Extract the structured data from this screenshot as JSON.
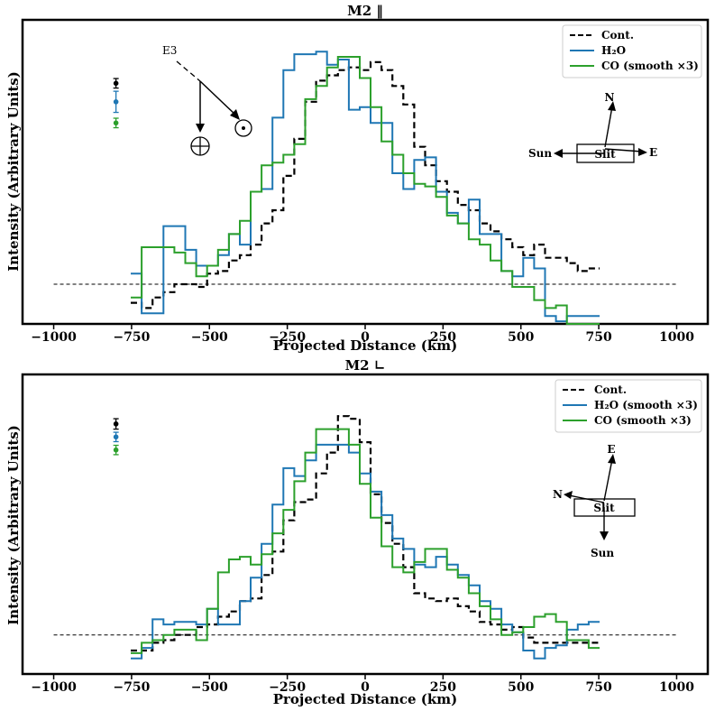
{
  "chart_data": [
    {
      "type": "line",
      "title": "M2 ‖",
      "xlabel": "Projected Distance (km)",
      "ylabel": "Intensity (Arbitrary Units)",
      "xlim": [
        -1100,
        1100
      ],
      "ylim": [
        -0.15,
        1.0
      ],
      "xticks": [
        -1000,
        -750,
        -500,
        -250,
        0,
        250,
        500,
        750,
        1000
      ],
      "baseline": 0,
      "legend": "top-right",
      "step_width": 35,
      "x": [
        -735,
        -700,
        -665,
        -630,
        -595,
        -560,
        -525,
        -490,
        -455,
        -420,
        -385,
        -350,
        -315,
        -280,
        -245,
        -210,
        -175,
        -140,
        -105,
        -70,
        -35,
        0,
        35,
        70,
        105,
        140,
        175,
        210,
        245,
        280,
        315,
        350,
        385,
        420,
        455,
        490,
        525,
        560,
        595,
        630,
        665,
        700,
        735
      ],
      "series": [
        {
          "name": "Cont.",
          "color": "#000000",
          "dash": "dashed",
          "values": [
            -0.07,
            -0.09,
            -0.05,
            -0.03,
            0.0,
            0.0,
            -0.01,
            0.04,
            0.05,
            0.09,
            0.11,
            0.15,
            0.23,
            0.28,
            0.41,
            0.55,
            0.69,
            0.77,
            0.79,
            0.81,
            0.82,
            0.81,
            0.84,
            0.81,
            0.75,
            0.68,
            0.52,
            0.45,
            0.39,
            0.35,
            0.3,
            0.28,
            0.23,
            0.2,
            0.17,
            0.14,
            0.11,
            0.15,
            0.1,
            0.1,
            0.08,
            0.05,
            0.06
          ]
        },
        {
          "name": "H₂O",
          "color": "#1f77b4",
          "dash": "solid",
          "values": [
            0.04,
            -0.11,
            -0.11,
            0.22,
            0.22,
            0.13,
            0.07,
            0.07,
            0.11,
            0.19,
            0.15,
            0.35,
            0.36,
            0.63,
            0.81,
            0.87,
            0.87,
            0.88,
            0.83,
            0.85,
            0.66,
            0.67,
            0.61,
            0.61,
            0.42,
            0.36,
            0.47,
            0.48,
            0.35,
            0.27,
            0.23,
            0.32,
            0.19,
            0.19,
            0.05,
            0.03,
            0.1,
            0.06,
            -0.12,
            -0.14,
            -0.12,
            -0.12,
            -0.12
          ]
        },
        {
          "name": "CO (smooth ×3)",
          "color": "#2ca02c",
          "dash": "solid",
          "values": [
            -0.05,
            0.14,
            0.14,
            0.14,
            0.12,
            0.08,
            0.03,
            0.07,
            0.13,
            0.19,
            0.24,
            0.35,
            0.45,
            0.46,
            0.49,
            0.53,
            0.7,
            0.75,
            0.82,
            0.86,
            0.86,
            0.78,
            0.67,
            0.54,
            0.49,
            0.42,
            0.38,
            0.37,
            0.33,
            0.26,
            0.23,
            0.17,
            0.15,
            0.09,
            0.05,
            -0.01,
            -0.01,
            -0.06,
            -0.09,
            -0.08,
            -0.15,
            -0.15,
            -0.15
          ]
        }
      ],
      "errorbars": [
        {
          "series": "Cont.",
          "color": "#000000",
          "x": -800,
          "y": 0.76,
          "err": 0.018
        },
        {
          "series": "H₂O",
          "color": "#1f77b4",
          "x": -800,
          "y": 0.69,
          "err": 0.04
        },
        {
          "series": "CO (smooth ×3)",
          "color": "#2ca02c",
          "x": -800,
          "y": 0.61,
          "err": 0.018
        }
      ],
      "compass": {
        "north": "N",
        "east": "E",
        "sun": "Sun",
        "slit": "Slit"
      },
      "annotation": {
        "label": "E3",
        "earth_symbol": "⊕",
        "sun_symbol": "⊙"
      }
    },
    {
      "type": "line",
      "title": "M2 ∟",
      "xlabel": "Projected Distance (km)",
      "ylabel": "Intensity (Arbitrary Units)",
      "xlim": [
        -1100,
        1100
      ],
      "ylim": [
        -0.15,
        1.0
      ],
      "xticks": [
        -1000,
        -750,
        -500,
        -250,
        0,
        250,
        500,
        750,
        1000
      ],
      "baseline": 0,
      "legend": "top-right",
      "step_width": 35,
      "x": [
        -735,
        -700,
        -665,
        -630,
        -595,
        -560,
        -525,
        -490,
        -455,
        -420,
        -385,
        -350,
        -315,
        -280,
        -245,
        -210,
        -175,
        -140,
        -105,
        -70,
        -35,
        0,
        35,
        70,
        105,
        140,
        175,
        210,
        245,
        280,
        315,
        350,
        385,
        420,
        455,
        490,
        525,
        560,
        595,
        630,
        665,
        700,
        735
      ],
      "series": [
        {
          "name": "Cont.",
          "color": "#000000",
          "dash": "dashed",
          "values": [
            -0.06,
            -0.06,
            -0.03,
            -0.02,
            0.0,
            0.0,
            0.03,
            0.04,
            0.07,
            0.09,
            0.13,
            0.14,
            0.23,
            0.32,
            0.44,
            0.51,
            0.52,
            0.62,
            0.7,
            0.84,
            0.83,
            0.74,
            0.54,
            0.43,
            0.35,
            0.26,
            0.16,
            0.14,
            0.13,
            0.14,
            0.11,
            0.09,
            0.05,
            0.04,
            0.02,
            0.03,
            -0.01,
            -0.03,
            -0.03,
            -0.03,
            -0.03,
            -0.03,
            -0.03
          ]
        },
        {
          "name": "H₂O (smooth ×3)",
          "color": "#1f77b4",
          "dash": "solid",
          "values": [
            -0.09,
            -0.05,
            0.06,
            0.04,
            0.05,
            0.05,
            0.04,
            0.1,
            0.04,
            0.04,
            0.13,
            0.22,
            0.35,
            0.5,
            0.64,
            0.61,
            0.67,
            0.73,
            0.73,
            0.73,
            0.7,
            0.62,
            0.55,
            0.46,
            0.37,
            0.33,
            0.27,
            0.26,
            0.3,
            0.27,
            0.23,
            0.19,
            0.13,
            0.1,
            0.04,
            0.01,
            -0.06,
            -0.09,
            -0.05,
            -0.04,
            0.02,
            0.04,
            0.05
          ]
        },
        {
          "name": "CO (smooth ×3)",
          "color": "#2ca02c",
          "dash": "solid",
          "values": [
            -0.07,
            -0.03,
            -0.02,
            0.0,
            0.02,
            0.02,
            -0.02,
            0.1,
            0.24,
            0.29,
            0.3,
            0.27,
            0.31,
            0.39,
            0.48,
            0.59,
            0.7,
            0.79,
            0.79,
            0.79,
            0.73,
            0.58,
            0.45,
            0.34,
            0.26,
            0.24,
            0.28,
            0.33,
            0.33,
            0.25,
            0.22,
            0.16,
            0.11,
            0.06,
            0.0,
            0.01,
            0.03,
            0.07,
            0.08,
            0.05,
            -0.02,
            -0.02,
            -0.05
          ]
        }
      ],
      "errorbars": [
        {
          "series": "Cont.",
          "color": "#000000",
          "x": -800,
          "y": 0.81,
          "err": 0.02
        },
        {
          "series": "H₂O (smooth ×3)",
          "color": "#1f77b4",
          "x": -800,
          "y": 0.76,
          "err": 0.018
        },
        {
          "series": "CO (smooth ×3)",
          "color": "#2ca02c",
          "x": -800,
          "y": 0.71,
          "err": 0.018
        }
      ],
      "compass": {
        "north": "N",
        "east": "E",
        "sun": "Sun",
        "slit": "Slit"
      }
    }
  ]
}
